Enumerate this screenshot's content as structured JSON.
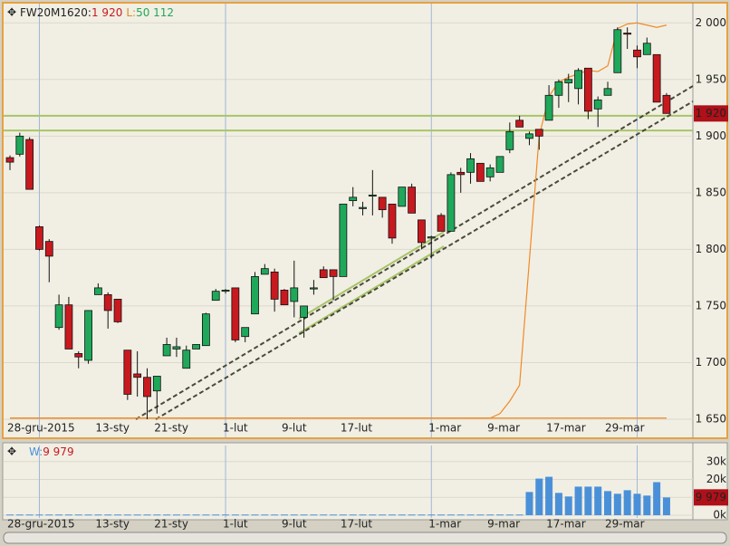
{
  "chart_data": {
    "type": "candlestick",
    "header": {
      "symbol": "FW20M1620:",
      "price": "1 920",
      "l_label": "L:",
      "l_value": "50 112"
    },
    "categories": [
      "28-gru-2015",
      null,
      null,
      null,
      null,
      null,
      null,
      null,
      null,
      "13-sty",
      null,
      null,
      null,
      null,
      null,
      "21-sty",
      null,
      null,
      null,
      null,
      null,
      null,
      "1-lut",
      null,
      null,
      null,
      null,
      null,
      "9-lut",
      null,
      null,
      null,
      null,
      null,
      "17-lut",
      null,
      null,
      null,
      null,
      null,
      null,
      null,
      null,
      "1-mar",
      null,
      null,
      null,
      null,
      null,
      "9-mar",
      null,
      null,
      null,
      null,
      null,
      "17-mar",
      null,
      null,
      null,
      null,
      null,
      "29-mar",
      null,
      null,
      null,
      null,
      null,
      null
    ],
    "open": [
      1881,
      1884,
      1897,
      1820,
      1807,
      1731,
      1751,
      1708,
      1702,
      1760,
      1760,
      1756,
      1711,
      1690,
      1687,
      1675,
      1706,
      1712,
      1695,
      1712,
      1715,
      1755,
      1763,
      1766,
      1723,
      1743,
      1778,
      1780,
      1764,
      1754,
      1740,
      1765,
      1782,
      1782,
      1776,
      1843,
      1836,
      1847,
      1846,
      1840,
      1838,
      1855,
      1826,
      1810,
      1830,
      1816,
      1868,
      1868,
      1876,
      1864,
      1868,
      1888,
      1914,
      1898,
      1906,
      1914,
      1936,
      1947,
      1942,
      1960,
      1924,
      1936,
      1956,
      1991,
      1976,
      1972,
      1972,
      1936
    ],
    "high": [
      1883,
      1903,
      1899,
      1821,
      1809,
      1760,
      1758,
      1710,
      1746,
      1770,
      1762,
      1756,
      1711,
      1710,
      1695,
      1688,
      1722,
      1722,
      1715,
      1716,
      1744,
      1765,
      1765,
      1766,
      1731,
      1780,
      1787,
      1783,
      1765,
      1790,
      1750,
      1773,
      1785,
      1782,
      1840,
      1855,
      1842,
      1870,
      1846,
      1840,
      1855,
      1858,
      1826,
      1812,
      1832,
      1868,
      1872,
      1885,
      1876,
      1875,
      1882,
      1912,
      1918,
      1904,
      1906,
      1945,
      1950,
      1955,
      1960,
      1960,
      1935,
      1948,
      1996,
      1996,
      1980,
      1987,
      1972,
      1938
    ],
    "low": [
      1870,
      1882,
      1853,
      1799,
      1771,
      1729,
      1712,
      1695,
      1699,
      1760,
      1730,
      1735,
      1667,
      1670,
      1650,
      1655,
      1706,
      1705,
      1695,
      1712,
      1715,
      1755,
      1761,
      1718,
      1718,
      1743,
      1778,
      1745,
      1751,
      1740,
      1722,
      1760,
      1775,
      1755,
      1776,
      1838,
      1830,
      1830,
      1828,
      1805,
      1838,
      1832,
      1800,
      1792,
      1816,
      1816,
      1850,
      1858,
      1860,
      1860,
      1868,
      1885,
      1908,
      1892,
      1888,
      1914,
      1925,
      1930,
      1928,
      1915,
      1908,
      1936,
      1956,
      1977,
      1960,
      1972,
      1930,
      1920
    ],
    "close": [
      1877,
      1900,
      1853,
      1800,
      1794,
      1751,
      1712,
      1705,
      1746,
      1766,
      1746,
      1736,
      1672,
      1687,
      1670,
      1688,
      1716,
      1714,
      1711,
      1716,
      1743,
      1763,
      1764,
      1720,
      1731,
      1776,
      1783,
      1756,
      1751,
      1766,
      1750,
      1766,
      1775,
      1776,
      1840,
      1846,
      1837,
      1848,
      1835,
      1810,
      1855,
      1832,
      1806,
      1811,
      1816,
      1866,
      1866,
      1880,
      1860,
      1872,
      1882,
      1904,
      1908,
      1902,
      1900,
      1936,
      1948,
      1950,
      1958,
      1922,
      1932,
      1942,
      1994,
      1990,
      1970,
      1982,
      1930,
      1920
    ],
    "band_upper": [
      1651,
      1651,
      1651,
      1651,
      1651,
      1651,
      1651,
      1651,
      1651,
      1651,
      1651,
      1651,
      1651,
      1651,
      1651,
      1651,
      1651,
      1651,
      1651,
      1651,
      1651,
      1651,
      1651,
      1651,
      1651,
      1651,
      1651,
      1651,
      1651,
      1651,
      1651,
      1651,
      1651,
      1651,
      1651,
      1651,
      1651,
      1651,
      1651,
      1651,
      1651,
      1651,
      1651,
      1651,
      1651,
      1651,
      1651,
      1651,
      1651,
      1651,
      1655,
      1666,
      1680,
      1790,
      1900,
      1935,
      1948,
      1952,
      1955,
      1958,
      1957,
      1962,
      1995,
      1999,
      2000,
      1998,
      1996,
      1998
    ],
    "band_lower": [
      1651,
      1651,
      1651,
      1651,
      1651,
      1651,
      1651,
      1651,
      1651,
      1651,
      1651,
      1651,
      1651,
      1651,
      1651,
      1651,
      1651,
      1651,
      1651,
      1651,
      1651,
      1651,
      1651,
      1651,
      1651,
      1651,
      1651,
      1651,
      1651,
      1651,
      1651,
      1651,
      1651,
      1651,
      1651,
      1651,
      1651,
      1651,
      1651,
      1651,
      1651,
      1651,
      1651,
      1651,
      1651,
      1651,
      1651,
      1651,
      1651,
      1651,
      1651,
      1651,
      1651,
      1651,
      1651,
      1651,
      1651,
      1651,
      1651,
      1651,
      1651,
      1651,
      1651,
      1651,
      1651,
      1651,
      1651,
      1651
    ],
    "levels": [
      1918,
      1905
    ],
    "up_color": "#1fa85a",
    "down_color": "#c8191f",
    "band_color": "#f08a24",
    "ylim": [
      1634,
      2017
    ],
    "yticks": [
      {
        "value": 1650,
        "label": "1 650"
      },
      {
        "value": 1700,
        "label": "1 700"
      },
      {
        "value": 1750,
        "label": "1 750"
      },
      {
        "value": 1800,
        "label": "1 800"
      },
      {
        "value": 1850,
        "label": "1 850"
      },
      {
        "value": 1900,
        "label": "1 900"
      },
      {
        "value": 1950,
        "label": "1 950"
      },
      {
        "value": 2000,
        "label": "2 000"
      }
    ],
    "volume": {
      "label": "W:",
      "last": "9 979",
      "color": "#4a90d9",
      "values": [
        400,
        400,
        400,
        400,
        400,
        400,
        400,
        400,
        400,
        400,
        400,
        400,
        400,
        400,
        400,
        400,
        400,
        400,
        400,
        400,
        400,
        400,
        400,
        400,
        400,
        400,
        400,
        400,
        400,
        400,
        400,
        400,
        400,
        400,
        400,
        400,
        400,
        400,
        400,
        400,
        400,
        400,
        400,
        400,
        400,
        400,
        400,
        400,
        400,
        400,
        400,
        400,
        400,
        13000,
        20500,
        21500,
        12500,
        10500,
        16000,
        16000,
        16000,
        13500,
        12000,
        14000,
        12000,
        11000,
        18500,
        9979
      ],
      "ylim": [
        -1500,
        39000
      ],
      "yticks": [
        {
          "value": 0,
          "label": "0k"
        },
        {
          "value": 10000,
          "label": "10k"
        },
        {
          "value": 20000,
          "label": "20k"
        },
        {
          "value": 30000,
          "label": "30k"
        }
      ]
    }
  }
}
